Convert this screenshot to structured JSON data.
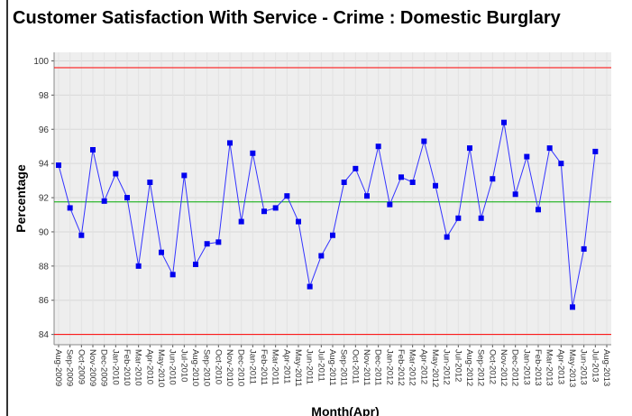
{
  "chart_data": {
    "type": "line",
    "title": "Customer Satisfaction With Service - Crime : Domestic Burglary",
    "x_label": "Month(Apr)",
    "y_label": "Percentage",
    "categories": [
      "Aug-2009",
      "Sep-2009",
      "Oct-2009",
      "Nov-2009",
      "Dec-2009",
      "Jan-2010",
      "Feb-2010",
      "Mar-2010",
      "Apr-2010",
      "May-2010",
      "Jun-2010",
      "Jul-2010",
      "Aug-2010",
      "Sep-2010",
      "Oct-2010",
      "Nov-2010",
      "Dec-2010",
      "Jan-2011",
      "Feb-2011",
      "Mar-2011",
      "Apr-2011",
      "May-2011",
      "Jun-2011",
      "Jul-2011",
      "Aug-2011",
      "Sep-2011",
      "Oct-2011",
      "Nov-2011",
      "Dec-2011",
      "Jan-2012",
      "Feb-2012",
      "Mar-2012",
      "Apr-2012",
      "May-2012",
      "Jun-2012",
      "Jul-2012",
      "Aug-2012",
      "Sep-2012",
      "Oct-2012",
      "Nov-2012",
      "Dec-2012",
      "Jan-2013",
      "Feb-2013",
      "Mar-2013",
      "Apr-2013",
      "May-2013",
      "Jun-2013",
      "Jul-2013",
      "Aug-2013"
    ],
    "series": [
      {
        "color": "#3333ff",
        "marker_color": "#0000ee",
        "values": [
          93.9,
          91.4,
          89.8,
          94.8,
          91.8,
          93.4,
          92.0,
          88.0,
          92.9,
          88.8,
          87.5,
          93.3,
          88.1,
          89.3,
          89.4,
          95.2,
          90.6,
          94.6,
          91.2,
          91.4,
          92.1,
          90.6,
          86.8,
          88.6,
          89.8,
          92.9,
          93.7,
          92.1,
          95.0,
          91.6,
          93.2,
          92.9,
          95.3,
          92.7,
          89.7,
          90.8,
          94.9,
          90.8,
          93.1,
          96.4,
          92.2,
          94.4,
          91.3,
          94.9,
          94.0,
          85.6,
          89.0,
          94.7,
          null
        ]
      }
    ],
    "reference_lines": [
      {
        "value": 99.6,
        "color": "#ff0000"
      },
      {
        "value": 91.75,
        "color": "#00aa00"
      },
      {
        "value": 84.0,
        "color": "#ff0000"
      }
    ],
    "ylim": [
      83.4,
      100.5
    ],
    "yticks": [
      84,
      86,
      88,
      90,
      92,
      94,
      96,
      98,
      100
    ],
    "grid": true
  }
}
